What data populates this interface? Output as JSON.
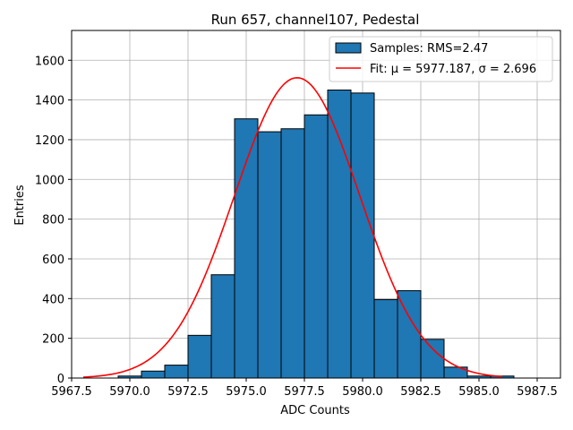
{
  "chart_data": {
    "type": "bar",
    "title": "Run 657, channel107, Pedestal",
    "xlabel": "ADC Counts",
    "ylabel": "Entries",
    "xlim": [
      5967.5,
      5988.5
    ],
    "ylim": [
      0,
      1750
    ],
    "xticks": [
      5967.5,
      5970.0,
      5972.5,
      5975.0,
      5977.5,
      5980.0,
      5982.5,
      5985.0,
      5987.5
    ],
    "xtick_labels": [
      "5967.5",
      "5970.0",
      "5972.5",
      "5975.0",
      "5977.5",
      "5980.0",
      "5982.5",
      "5985.0",
      "5987.5"
    ],
    "yticks": [
      0,
      200,
      400,
      600,
      800,
      1000,
      1200,
      1400,
      1600
    ],
    "ytick_labels": [
      "0",
      "200",
      "400",
      "600",
      "800",
      "1000",
      "1200",
      "1400",
      "1600"
    ],
    "grid": true,
    "legend_position": "top-right",
    "series": [
      {
        "name": "Samples: RMS=2.47",
        "kind": "histogram",
        "color": "#1f77b4",
        "edge_color": "#000000",
        "bins": [
          {
            "x0": 5969.5,
            "x1": 5970.5,
            "count": 10
          },
          {
            "x0": 5970.5,
            "x1": 5971.5,
            "count": 35
          },
          {
            "x0": 5971.5,
            "x1": 5972.5,
            "count": 65
          },
          {
            "x0": 5972.5,
            "x1": 5973.5,
            "count": 215
          },
          {
            "x0": 5973.5,
            "x1": 5974.5,
            "count": 520
          },
          {
            "x0": 5974.5,
            "x1": 5975.5,
            "count": 1305
          },
          {
            "x0": 5975.5,
            "x1": 5976.5,
            "count": 1240
          },
          {
            "x0": 5976.5,
            "x1": 5977.5,
            "count": 1255
          },
          {
            "x0": 5977.5,
            "x1": 5978.5,
            "count": 1325
          },
          {
            "x0": 5978.5,
            "x1": 5979.5,
            "count": 1450
          },
          {
            "x0": 5979.5,
            "x1": 5980.5,
            "count": 1435
          },
          {
            "x0": 5980.5,
            "x1": 5981.5,
            "count": 395
          },
          {
            "x0": 5981.5,
            "x1": 5982.5,
            "count": 440
          },
          {
            "x0": 5982.5,
            "x1": 5983.5,
            "count": 195
          },
          {
            "x0": 5983.5,
            "x1": 5984.5,
            "count": 55
          },
          {
            "x0": 5984.5,
            "x1": 5985.5,
            "count": 10
          },
          {
            "x0": 5985.5,
            "x1": 5986.5,
            "count": 10
          }
        ]
      },
      {
        "name": "Fit: μ = 5977.187, σ = 2.696",
        "kind": "gaussian-fit",
        "color": "#ff0000",
        "mu": 5977.187,
        "sigma": 2.696,
        "amplitude": 1512,
        "x_range": [
          5968.0,
          5986.0
        ]
      }
    ],
    "legend": [
      {
        "label": "Samples: RMS=2.47",
        "swatch": "patch"
      },
      {
        "label": "Fit: μ = 5977.187, σ = 2.696",
        "swatch": "line"
      }
    ]
  }
}
